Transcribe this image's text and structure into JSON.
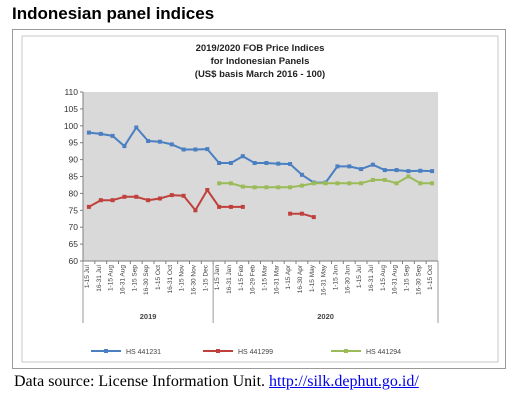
{
  "page": {
    "title": "Indonesian panel indices",
    "source_prefix": "Data source: License Information Unit.",
    "source_link": "http://silk.dephut.go.id/"
  },
  "chart_data": {
    "type": "line",
    "title_lines": [
      "2019/2020 FOB Price Indices",
      "for Indonesian Panels",
      "(US$ basis March 2016 - 100)"
    ],
    "categories": [
      "1-15 Jul",
      "16-31 Jul",
      "1-15 Aug",
      "16-31 Aug",
      "1-15 Sep",
      "16-30 Sep",
      "1-15 Oct",
      "16-31 Oct",
      "1-15 Nov",
      "16-30 Nov",
      "1-15 Dec",
      "1-15 Jan",
      "16-31 Jan",
      "1-15 Feb",
      "16-29 Feb",
      "1-15 Mar",
      "16-31 Mar",
      "1-15 Apr",
      "16-30 Apr",
      "1-15 May",
      "16-31 May",
      "1-15 Jun",
      "16-30 Jun",
      "1-15 Jul",
      "16-31 Jul",
      "1-15 Aug",
      "16-31 Aug",
      "1-15 Sep",
      "16-30 Sep",
      "1-15 Oct"
    ],
    "groups": [
      {
        "label": "2019",
        "start": 0,
        "end": 10
      },
      {
        "label": "2020",
        "start": 11,
        "end": 29
      }
    ],
    "ylim": [
      60,
      110
    ],
    "yticks": [
      60,
      65,
      70,
      75,
      80,
      85,
      90,
      95,
      100,
      105,
      110
    ],
    "grid": false,
    "legend_position": "bottom",
    "series": [
      {
        "name": "HS 441231",
        "color": "#4a7fc1",
        "values": [
          98,
          97.6,
          97,
          94,
          99.5,
          95.5,
          95.3,
          94.5,
          93,
          93,
          93.1,
          89,
          89,
          91,
          89,
          89,
          88.8,
          88.7,
          85.5,
          83.2,
          83.2,
          88,
          88,
          87.2,
          88.5,
          86.9,
          86.9,
          86.6,
          86.7,
          86.6
        ]
      },
      {
        "name": "HS 441299",
        "color": "#c0403c",
        "values": [
          76,
          78,
          78,
          79,
          79,
          78,
          78.5,
          79.5,
          79.3,
          75,
          81,
          76,
          76,
          76,
          null,
          null,
          null,
          74,
          74,
          73,
          null,
          null,
          null,
          null,
          null,
          null,
          null,
          null,
          null,
          null
        ]
      },
      {
        "name": "HS 441294",
        "color": "#9bbb59",
        "values": [
          null,
          null,
          null,
          null,
          null,
          null,
          null,
          null,
          null,
          null,
          null,
          83,
          83,
          82,
          81.8,
          81.8,
          81.8,
          81.8,
          82.3,
          83,
          83,
          83,
          83,
          83,
          84,
          84,
          83,
          85,
          83,
          83
        ]
      }
    ]
  }
}
